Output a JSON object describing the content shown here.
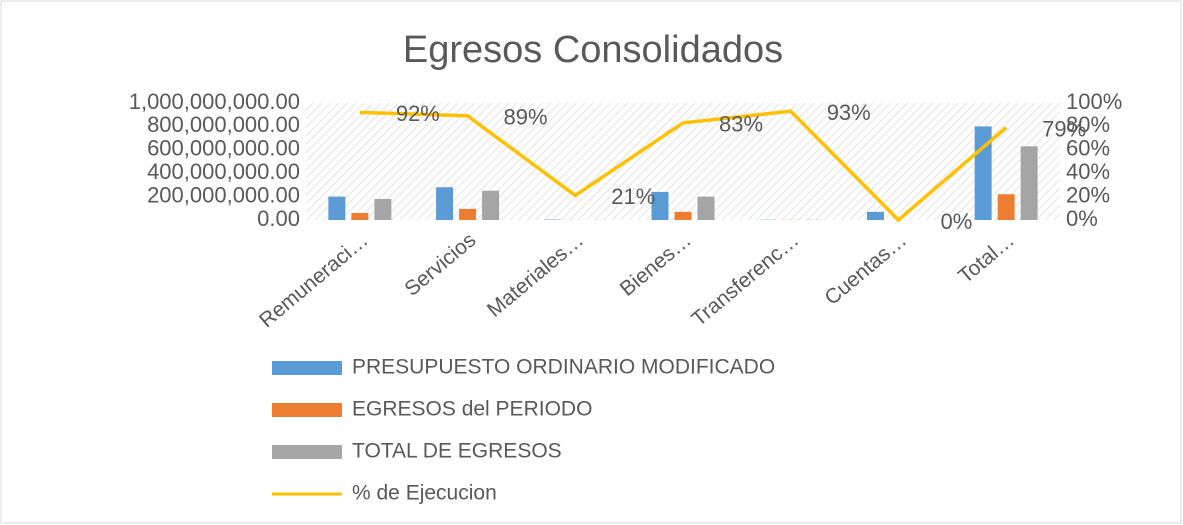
{
  "chart_data": {
    "type": "bar-line",
    "title": "Egresos Consolidados",
    "categories": [
      "Remuneraci…",
      "Servicios",
      "Materiales…",
      "Bienes…",
      "Transferenc…",
      "Cuentas…",
      "Total…"
    ],
    "series": [
      {
        "name": "PRESUPUESTO ORDINARIO  MODIFICADO",
        "color": "#5b9bd5",
        "type": "bar",
        "values": [
          200000000,
          280000000,
          3000000,
          240000000,
          2000000,
          70000000,
          800000000
        ]
      },
      {
        "name": "EGRESOS del PERIODO",
        "color": "#ed7d31",
        "type": "bar",
        "values": [
          60000000,
          95000000,
          600000,
          70000000,
          1000000,
          0,
          220000000
        ]
      },
      {
        "name": "TOTAL DE EGRESOS",
        "color": "#a5a5a5",
        "type": "bar",
        "values": [
          180000000,
          250000000,
          600000,
          200000000,
          1900000,
          0,
          630000000
        ]
      },
      {
        "name": "% de Ejecucion",
        "color": "#ffc000",
        "type": "line",
        "axis": "y2",
        "values": [
          92,
          89,
          21,
          83,
          93,
          0,
          79
        ],
        "value_labels": [
          "92%",
          "89%",
          "21%",
          "83%",
          "93%",
          "0%",
          "79%"
        ]
      }
    ],
    "ylim": [
      0,
      1000000000
    ],
    "yticks": [
      {
        "value": 0,
        "label": "0.00"
      },
      {
        "value": 200000000,
        "label": "200,000,000.00"
      },
      {
        "value": 400000000,
        "label": "400,000,000.00"
      },
      {
        "value": 600000000,
        "label": "600,000,000.00"
      },
      {
        "value": 800000000,
        "label": "800,000,000.00"
      },
      {
        "value": 1000000000,
        "label": "1,000,000,000.00"
      }
    ],
    "y2lim": [
      0,
      100
    ],
    "y2ticks": [
      {
        "value": 0,
        "label": "0%"
      },
      {
        "value": 20,
        "label": "20%"
      },
      {
        "value": 40,
        "label": "40%"
      },
      {
        "value": 60,
        "label": "60%"
      },
      {
        "value": 80,
        "label": "80%"
      },
      {
        "value": 100,
        "label": "100%"
      }
    ]
  }
}
